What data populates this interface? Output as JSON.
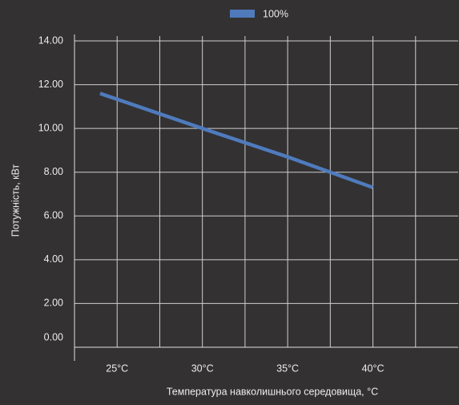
{
  "chart_data": {
    "type": "line",
    "x_label": "Температура навколишнього середовища, °C",
    "y_label": "Потужність, кВт",
    "x": [
      24,
      30,
      35,
      40
    ],
    "series": [
      {
        "name": "100%",
        "color": "#4f7bbd",
        "values": [
          11.6,
          10.0,
          8.7,
          7.3
        ]
      }
    ],
    "xlim": [
      22.5,
      45
    ],
    "xticks": [
      {
        "value": 25,
        "label": "25°C"
      },
      {
        "value": 30,
        "label": "30°C"
      },
      {
        "value": 35,
        "label": "35°C"
      },
      {
        "value": 40,
        "label": "40°C"
      }
    ],
    "x_minor_ticks": [
      27.5,
      32.5,
      37.5,
      42.5
    ],
    "ylim": [
      0,
      14
    ],
    "yticks": [
      {
        "value": 0,
        "label": "0.00"
      },
      {
        "value": 2,
        "label": "2.00"
      },
      {
        "value": 4,
        "label": "4.00"
      },
      {
        "value": 6,
        "label": "6.00"
      },
      {
        "value": 8,
        "label": "8.00"
      },
      {
        "value": 10,
        "label": "10.00"
      },
      {
        "value": 12,
        "label": "12.00"
      },
      {
        "value": 14,
        "label": "14.00"
      }
    ],
    "grid": true,
    "legend": "top"
  }
}
